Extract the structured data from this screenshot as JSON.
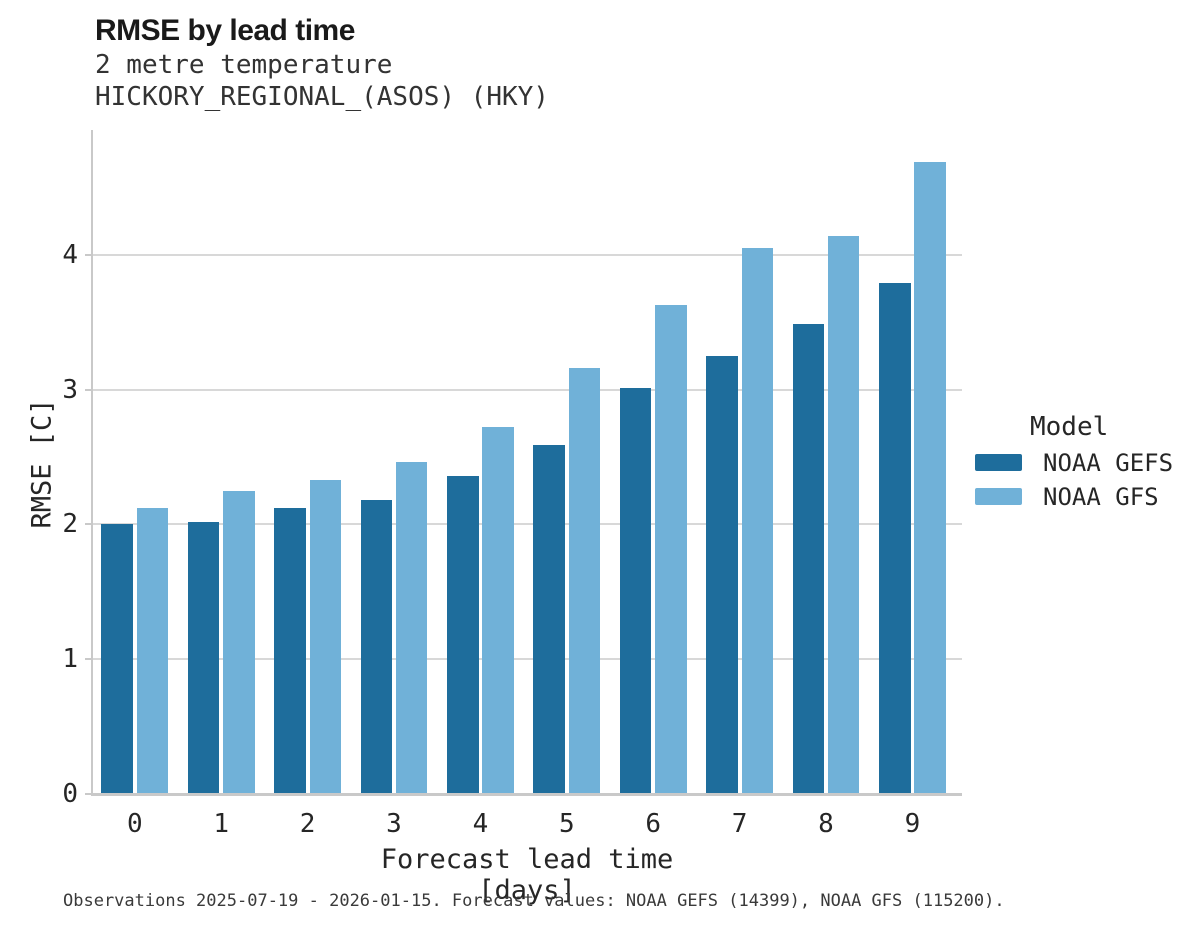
{
  "header": {
    "title": "RMSE by lead time",
    "subtitle_line1": "2 metre temperature",
    "subtitle_line2": "HICKORY_REGIONAL_(ASOS) (HKY)"
  },
  "chart_data": {
    "type": "bar",
    "title": "RMSE by lead time",
    "subtitle": [
      "2 metre temperature",
      "HICKORY_REGIONAL_(ASOS) (HKY)"
    ],
    "categories": [
      "0",
      "1",
      "2",
      "3",
      "4",
      "5",
      "6",
      "7",
      "8",
      "9"
    ],
    "series": [
      {
        "name": "NOAA GEFS",
        "color": "#1e6d9c",
        "values": [
          2.0,
          2.02,
          2.12,
          2.18,
          2.36,
          2.59,
          3.01,
          3.25,
          3.49,
          3.79
        ]
      },
      {
        "name": "NOAA GFS",
        "color": "#70b1d8",
        "values": [
          2.12,
          2.25,
          2.33,
          2.46,
          2.72,
          3.16,
          3.63,
          4.05,
          4.14,
          4.69
        ]
      }
    ],
    "xlabel": "Forecast lead time [days]",
    "ylabel": "RMSE [C]",
    "yticks": [
      0,
      1,
      2,
      3,
      4
    ],
    "ylim": [
      0,
      4.93
    ],
    "grid": "horizontal",
    "legend": {
      "title": "Model",
      "position": "right"
    }
  },
  "footer": {
    "caption": "Observations 2025-07-19 - 2026-01-15. Forecast values: NOAA GEFS (14399), NOAA GFS (115200)."
  },
  "colors": {
    "gefs_bar": "#1e6d9c",
    "gfs_bar": "#70b1d8",
    "gridline": "#d8d8d8",
    "spine": "#c9c9c9",
    "text": "#262626"
  }
}
